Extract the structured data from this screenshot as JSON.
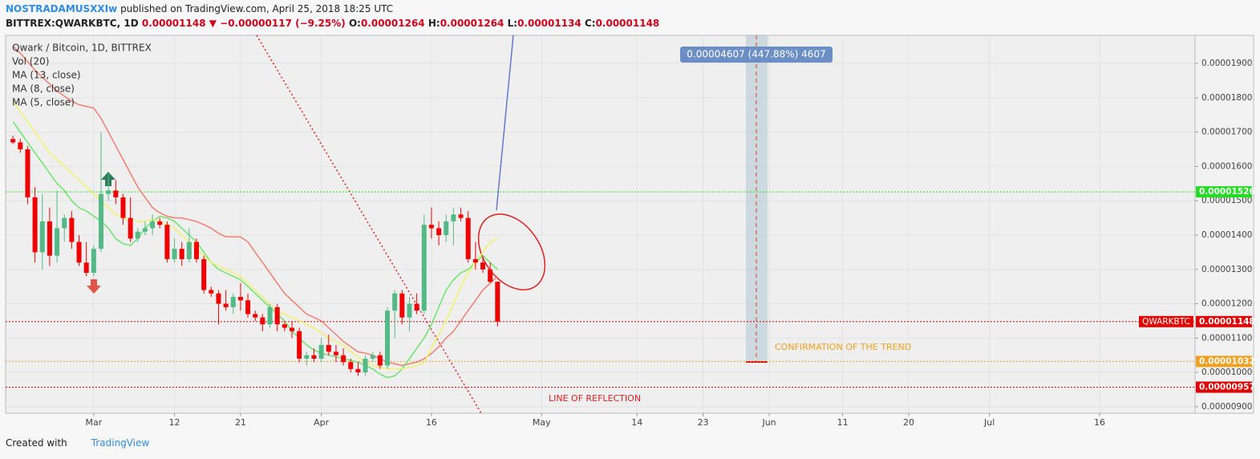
{
  "header": {
    "author": "NOSTRADAMUSXXIw",
    "published": "published on TradingView.com, April 25, 2018 18:25 UTC",
    "symbol": "BITTREX:QWARKBTC, 1D",
    "arrow": "▼",
    "change": "−0.00000117 (−9.25%)",
    "ohlc_labels": [
      "O:",
      "H:",
      "L:",
      "C:"
    ]
  },
  "footer": {
    "created": "Created with",
    "brand": "TradingView"
  },
  "annotations": {
    "measure": "0.00004607 (447.88%) 4607",
    "confirmation": "CONFIRMATION OF THE TREND",
    "reflection": "LINE OF REFLECTION"
  },
  "chart_data": {
    "type": "candlestick",
    "title": "Qwark / Bitcoin, 1D, BITTREX",
    "volume_label": "Vol (20)",
    "up_color": "#53b987",
    "down_color": "#f00000",
    "grid": true,
    "xlim": [
      "2018-02-17",
      "2018-07-29"
    ],
    "xticks": [
      {
        "value": "2018-03-01",
        "label": "Mar"
      },
      {
        "value": "2018-03-12",
        "label": "12"
      },
      {
        "value": "2018-03-21",
        "label": "21"
      },
      {
        "value": "2018-04-01",
        "label": "Apr"
      },
      {
        "value": "2018-04-16",
        "label": "16"
      },
      {
        "value": "2018-05-01",
        "label": "May"
      },
      {
        "value": "2018-05-14",
        "label": "14"
      },
      {
        "value": "2018-05-23",
        "label": "23"
      },
      {
        "value": "2018-06-01",
        "label": "Jun"
      },
      {
        "value": "2018-06-11",
        "label": "11"
      },
      {
        "value": "2018-06-20",
        "label": "20"
      },
      {
        "value": "2018-07-01",
        "label": "Jul"
      },
      {
        "value": "2018-07-16",
        "label": "16"
      }
    ],
    "ylim": [
      8.81e-06,
      1.982e-05
    ],
    "yticks": [
      {
        "value": 9e-06,
        "label": "0.00000900"
      },
      {
        "value": 1e-05,
        "label": "0.00001000"
      },
      {
        "value": 1.1e-05,
        "label": "0.00001100"
      },
      {
        "value": 1.2e-05,
        "label": "0.00001200"
      },
      {
        "value": 1.3e-05,
        "label": "0.00001300"
      },
      {
        "value": 1.4e-05,
        "label": "0.00001400"
      },
      {
        "value": 1.5e-05,
        "label": "0.00001500"
      },
      {
        "value": 1.6e-05,
        "label": "0.00001600"
      },
      {
        "value": 1.7e-05,
        "label": "0.00001700"
      },
      {
        "value": 1.8e-05,
        "label": "0.00001800"
      },
      {
        "value": 1.9e-05,
        "label": "0.00001900"
      }
    ],
    "x": [
      "2018-02-18",
      "2018-02-19",
      "2018-02-20",
      "2018-02-21",
      "2018-02-22",
      "2018-02-23",
      "2018-02-24",
      "2018-02-25",
      "2018-02-26",
      "2018-02-27",
      "2018-02-28",
      "2018-03-01",
      "2018-03-02",
      "2018-03-03",
      "2018-03-04",
      "2018-03-05",
      "2018-03-06",
      "2018-03-07",
      "2018-03-08",
      "2018-03-09",
      "2018-03-10",
      "2018-03-11",
      "2018-03-12",
      "2018-03-13",
      "2018-03-14",
      "2018-03-15",
      "2018-03-16",
      "2018-03-17",
      "2018-03-18",
      "2018-03-19",
      "2018-03-20",
      "2018-03-21",
      "2018-03-22",
      "2018-03-23",
      "2018-03-24",
      "2018-03-25",
      "2018-03-26",
      "2018-03-27",
      "2018-03-28",
      "2018-03-29",
      "2018-03-30",
      "2018-03-31",
      "2018-04-01",
      "2018-04-02",
      "2018-04-03",
      "2018-04-04",
      "2018-04-05",
      "2018-04-06",
      "2018-04-07",
      "2018-04-08",
      "2018-04-09",
      "2018-04-10",
      "2018-04-11",
      "2018-04-12",
      "2018-04-13",
      "2018-04-14",
      "2018-04-15",
      "2018-04-16",
      "2018-04-17",
      "2018-04-18",
      "2018-04-19",
      "2018-04-20",
      "2018-04-21",
      "2018-04-22",
      "2018-04-23",
      "2018-04-24",
      "2018-04-25"
    ],
    "open": [
      1.68e-05,
      1.67e-05,
      1.65e-05,
      1.51e-05,
      1.35e-05,
      1.44e-05,
      1.34e-05,
      1.42e-05,
      1.45e-05,
      1.38e-05,
      1.32e-05,
      1.29e-05,
      1.36e-05,
      1.52e-05,
      1.53e-05,
      1.51e-05,
      1.45e-05,
      1.39e-05,
      1.41e-05,
      1.42e-05,
      1.44e-05,
      1.43e-05,
      1.33e-05,
      1.36e-05,
      1.33e-05,
      1.38e-05,
      1.33e-05,
      1.24e-05,
      1.23e-05,
      1.2e-05,
      1.19e-05,
      1.22e-05,
      1.21e-05,
      1.17e-05,
      1.16e-05,
      1.14e-05,
      1.19e-05,
      1.14e-05,
      1.13e-05,
      1.12e-05,
      1.04e-05,
      1.05e-05,
      1.04e-05,
      1.08e-05,
      1.06e-05,
      1.05e-05,
      1.03e-05,
      1.01e-05,
      1e-05,
      1.04e-05,
      1.05e-05,
      1.02e-05,
      1.18e-05,
      1.23e-05,
      1.16e-05,
      1.2e-05,
      1.18e-05,
      1.43e-05,
      1.42e-05,
      1.4e-05,
      1.44e-05,
      1.46e-05,
      1.45e-05,
      1.33e-05,
      1.32e-05,
      1.3e-05,
      1.264e-05
    ],
    "high": [
      1.69e-05,
      1.68e-05,
      1.66e-05,
      1.54e-05,
      1.52e-05,
      1.48e-05,
      1.53e-05,
      1.46e-05,
      1.47e-05,
      1.4e-05,
      1.38e-05,
      1.37e-05,
      1.7e-05,
      1.58e-05,
      1.56e-05,
      1.52e-05,
      1.51e-05,
      1.42e-05,
      1.44e-05,
      1.46e-05,
      1.45e-05,
      1.44e-05,
      1.39e-05,
      1.38e-05,
      1.42e-05,
      1.39e-05,
      1.34e-05,
      1.25e-05,
      1.24e-05,
      1.24e-05,
      1.23e-05,
      1.26e-05,
      1.23e-05,
      1.18e-05,
      1.17e-05,
      1.2e-05,
      1.2e-05,
      1.15e-05,
      1.15e-05,
      1.13e-05,
      1.06e-05,
      1.07e-05,
      1.1e-05,
      1.11e-05,
      1.08e-05,
      1.07e-05,
      1.04e-05,
      1.03e-05,
      1.05e-05,
      1.06e-05,
      1.06e-05,
      1.19e-05,
      1.24e-05,
      1.24e-05,
      1.22e-05,
      1.23e-05,
      1.46e-05,
      1.48e-05,
      1.44e-05,
      1.46e-05,
      1.48e-05,
      1.48e-05,
      1.47e-05,
      1.38e-05,
      1.34e-05,
      1.32e-05,
      1.264e-05
    ],
    "low": [
      1.665e-05,
      1.64e-05,
      1.49e-05,
      1.32e-05,
      1.3e-05,
      1.31e-05,
      1.32e-05,
      1.38e-05,
      1.36e-05,
      1.31e-05,
      1.28e-05,
      1.28e-05,
      1.35e-05,
      1.5e-05,
      1.49e-05,
      1.43e-05,
      1.38e-05,
      1.38e-05,
      1.4e-05,
      1.4e-05,
      1.42e-05,
      1.32e-05,
      1.32e-05,
      1.31e-05,
      1.32e-05,
      1.32e-05,
      1.23e-05,
      1.22e-05,
      1.14e-05,
      1.18e-05,
      1.17e-05,
      1.18e-05,
      1.16e-05,
      1.15e-05,
      1.12e-05,
      1.13e-05,
      1.12e-05,
      1.12e-05,
      1.1e-05,
      1.03e-05,
      1.02e-05,
      1.03e-05,
      1.03e-05,
      1.05e-05,
      1.03e-05,
      1.02e-05,
      1e-05,
      9.9e-06,
      9.9e-06,
      1.03e-05,
      1.01e-05,
      1.01e-05,
      1.1e-05,
      1.14e-05,
      1.12e-05,
      1.17e-05,
      1.17e-05,
      1.39e-05,
      1.37e-05,
      1.38e-05,
      1.37e-05,
      1.44e-05,
      1.32e-05,
      1.3e-05,
      1.29e-05,
      1.26e-05,
      1.134e-05
    ],
    "close": [
      1.67e-05,
      1.65e-05,
      1.51e-05,
      1.35e-05,
      1.44e-05,
      1.34e-05,
      1.42e-05,
      1.45e-05,
      1.38e-05,
      1.32e-05,
      1.29e-05,
      1.36e-05,
      1.52e-05,
      1.53e-05,
      1.51e-05,
      1.45e-05,
      1.39e-05,
      1.41e-05,
      1.42e-05,
      1.44e-05,
      1.43e-05,
      1.33e-05,
      1.36e-05,
      1.33e-05,
      1.38e-05,
      1.33e-05,
      1.24e-05,
      1.23e-05,
      1.2e-05,
      1.19e-05,
      1.22e-05,
      1.21e-05,
      1.17e-05,
      1.16e-05,
      1.14e-05,
      1.19e-05,
      1.14e-05,
      1.13e-05,
      1.12e-05,
      1.04e-05,
      1.05e-05,
      1.04e-05,
      1.08e-05,
      1.06e-05,
      1.05e-05,
      1.03e-05,
      1.01e-05,
      1e-05,
      1.04e-05,
      1.05e-05,
      1.02e-05,
      1.18e-05,
      1.23e-05,
      1.16e-05,
      1.2e-05,
      1.18e-05,
      1.43e-05,
      1.42e-05,
      1.4e-05,
      1.44e-05,
      1.46e-05,
      1.45e-05,
      1.33e-05,
      1.32e-05,
      1.3e-05,
      1.264e-05,
      1.148e-05
    ],
    "series": [
      {
        "name": "MA (13, close)",
        "color": "#f07f72",
        "values": [
          1.95e-05,
          1.93e-05,
          1.905e-05,
          1.88e-05,
          1.86e-05,
          1.84e-05,
          1.82e-05,
          1.805e-05,
          1.79e-05,
          1.78e-05,
          1.775e-05,
          1.77e-05,
          1.74e-05,
          1.7e-05,
          1.66e-05,
          1.62e-05,
          1.58e-05,
          1.54e-05,
          1.51e-05,
          1.48e-05,
          1.465e-05,
          1.455e-05,
          1.45e-05,
          1.45e-05,
          1.445e-05,
          1.44e-05,
          1.43e-05,
          1.42e-05,
          1.405e-05,
          1.395e-05,
          1.395e-05,
          1.395e-05,
          1.38e-05,
          1.35e-05,
          1.32e-05,
          1.29e-05,
          1.26e-05,
          1.23e-05,
          1.21e-05,
          1.19e-05,
          1.17e-05,
          1.16e-05,
          1.15e-05,
          1.13e-05,
          1.11e-05,
          1.09e-05,
          1.075e-05,
          1.06e-05,
          1.056e-05,
          1.05e-05,
          1.04e-05,
          1.03e-05,
          1.025e-05,
          1.02e-05,
          1.025e-05,
          1.03e-05,
          1.04e-05,
          1.055e-05,
          1.075e-05,
          1.1e-05,
          1.12e-05,
          1.15e-05,
          1.18e-05,
          1.21e-05,
          1.24e-05,
          1.26e-05,
          1.28e-05
        ]
      },
      {
        "name": "MA (8, close)",
        "color": "#6de36d",
        "values": [
          1.73e-05,
          1.7e-05,
          1.67e-05,
          1.64e-05,
          1.61e-05,
          1.58e-05,
          1.55e-05,
          1.53e-05,
          1.5e-05,
          1.48e-05,
          1.47e-05,
          1.455e-05,
          1.44e-05,
          1.42e-05,
          1.39e-05,
          1.375e-05,
          1.37e-05,
          1.39e-05,
          1.42e-05,
          1.44e-05,
          1.455e-05,
          1.45e-05,
          1.44e-05,
          1.42e-05,
          1.4e-05,
          1.38e-05,
          1.35e-05,
          1.32e-05,
          1.3e-05,
          1.29e-05,
          1.28e-05,
          1.27e-05,
          1.25e-05,
          1.23e-05,
          1.21e-05,
          1.19e-05,
          1.17e-05,
          1.15e-05,
          1.12e-05,
          1.1e-05,
          1.08e-05,
          1.065e-05,
          1.056e-05,
          1.05e-05,
          1.045e-05,
          1.04e-05,
          1.035e-05,
          1.03e-05,
          1.02e-05,
          1.01e-05,
          9.95e-06,
          9.85e-06,
          9.9e-06,
          1.01e-05,
          1.04e-05,
          1.07e-05,
          1.1e-05,
          1.14e-05,
          1.19e-05,
          1.24e-05,
          1.27e-05,
          1.29e-05,
          1.3e-05,
          1.32e-05,
          1.34e-05,
          1.32e-05,
          1.3e-05
        ]
      },
      {
        "name": "MA (5, close)",
        "color": "#f2f26a",
        "values": [
          1.79e-05,
          1.76e-05,
          1.73e-05,
          1.7e-05,
          1.67e-05,
          1.64e-05,
          1.62e-05,
          1.6e-05,
          1.58e-05,
          1.56e-05,
          1.54e-05,
          1.52e-05,
          1.5e-05,
          1.48e-05,
          1.46e-05,
          1.45e-05,
          1.445e-05,
          1.44e-05,
          1.44e-05,
          1.445e-05,
          1.44e-05,
          1.43e-05,
          1.42e-05,
          1.4e-05,
          1.38e-05,
          1.36e-05,
          1.34e-05,
          1.32e-05,
          1.31e-05,
          1.3e-05,
          1.29e-05,
          1.28e-05,
          1.26e-05,
          1.24e-05,
          1.22e-05,
          1.2e-05,
          1.18e-05,
          1.17e-05,
          1.16e-05,
          1.15e-05,
          1.14e-05,
          1.13e-05,
          1.115e-05,
          1.1e-05,
          1.09e-05,
          1.08e-05,
          1.06e-05,
          1.045e-05,
          1.03e-05,
          1.02e-05,
          1.015e-05,
          1.01e-05,
          1.01e-05,
          1.01e-05,
          1.015e-05,
          1.02e-05,
          1.03e-05,
          1.07e-05,
          1.11e-05,
          1.15e-05,
          1.2e-05,
          1.25e-05,
          1.29e-05,
          1.32e-05,
          1.35e-05,
          1.38e-05,
          1.39e-05
        ]
      }
    ],
    "levels": [
      {
        "value": 1.526e-05,
        "color": "#22dd22"
      },
      {
        "value": 1.148e-05,
        "color": "#e00000",
        "label": "QWARKBTC"
      },
      {
        "value": 1.032e-05,
        "color": "#f0a020"
      },
      {
        "value": 9.57e-06,
        "color": "#e00000"
      }
    ]
  }
}
